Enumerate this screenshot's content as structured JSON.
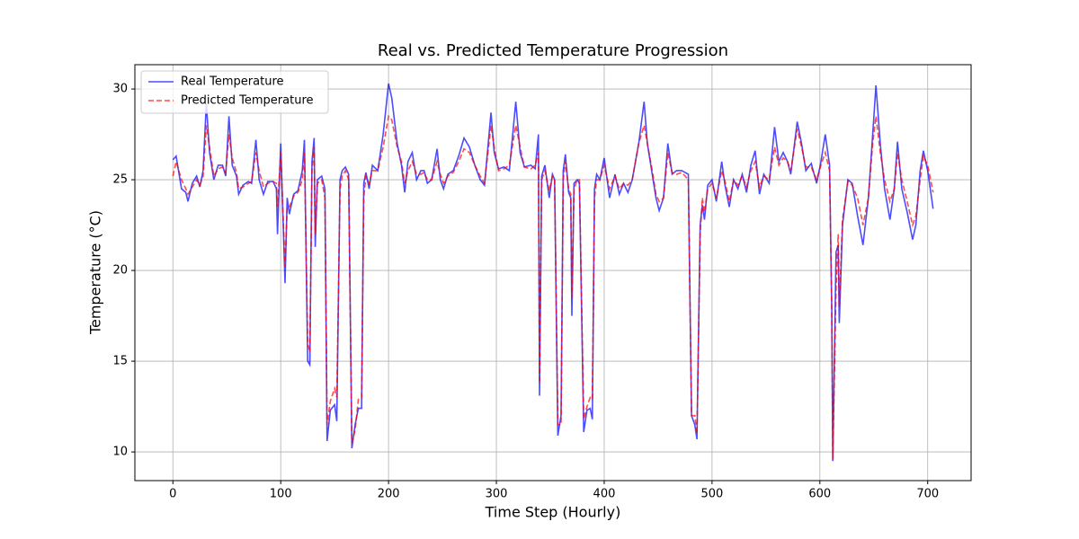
{
  "chart_data": {
    "type": "line",
    "title": "Real vs. Predicted Temperature Progression",
    "x_label": "Time Step (Hourly)",
    "y_label": "Temperature (°C)",
    "x": [
      0,
      3,
      8,
      12,
      14,
      18,
      22,
      25,
      28,
      31,
      34,
      38,
      42,
      46,
      49,
      52,
      55,
      59,
      61,
      65,
      70,
      73,
      77,
      80,
      84,
      88,
      93,
      96,
      97,
      100,
      104,
      106,
      108,
      112,
      116,
      120,
      122,
      125,
      127,
      129,
      131,
      132,
      134,
      138,
      141,
      143,
      146,
      150,
      152,
      155,
      157,
      160,
      163,
      166,
      169,
      172,
      175,
      177,
      179,
      182,
      185,
      190,
      195,
      200,
      203,
      208,
      212,
      215,
      218,
      222,
      226,
      230,
      233,
      236,
      240,
      245,
      248,
      251,
      255,
      260,
      265,
      270,
      275,
      280,
      285,
      289,
      295,
      298,
      302,
      307,
      312,
      318,
      322,
      326,
      332,
      336,
      339,
      340,
      342,
      345,
      349,
      352,
      354,
      357,
      360,
      362,
      364,
      367,
      369,
      370,
      372,
      375,
      377,
      381,
      384,
      387,
      389,
      391,
      393,
      396,
      400,
      405,
      410,
      414,
      418,
      422,
      426,
      432,
      437,
      440,
      444,
      448,
      451,
      455,
      459,
      463,
      467,
      472,
      478,
      481,
      484,
      486,
      489,
      491,
      493,
      496,
      500,
      504,
      509,
      512,
      516,
      520,
      524,
      528,
      532,
      536,
      540,
      544,
      548,
      553,
      558,
      562,
      566,
      570,
      573,
      579,
      583,
      587,
      592,
      597,
      601,
      605,
      609,
      611,
      612,
      615,
      617,
      618,
      621,
      626,
      630,
      635,
      640,
      645,
      649,
      652,
      656,
      660,
      665,
      669,
      672,
      676,
      681,
      686,
      689,
      693,
      696,
      700,
      705
    ],
    "series": [
      {
        "name": "Real Temperature",
        "color": "#0000ff",
        "linestyle": "solid",
        "values": [
          26.1,
          26.3,
          24.5,
          24.3,
          23.8,
          24.8,
          25.2,
          24.6,
          25.5,
          29.2,
          26.5,
          25.0,
          25.8,
          25.8,
          25.2,
          28.5,
          25.8,
          25.2,
          24.2,
          24.7,
          24.9,
          24.8,
          27.2,
          25.0,
          24.2,
          24.9,
          24.9,
          24.5,
          22.0,
          27.0,
          19.3,
          24.0,
          23.1,
          24.2,
          24.4,
          25.5,
          27.2,
          15.0,
          14.8,
          26.0,
          27.3,
          21.3,
          25.0,
          25.2,
          24.5,
          10.6,
          12.3,
          12.6,
          11.7,
          25.0,
          25.5,
          25.7,
          25.3,
          10.2,
          11.5,
          12.4,
          12.4,
          24.8,
          25.4,
          24.5,
          25.8,
          25.5,
          27.5,
          30.3,
          29.5,
          27.0,
          25.8,
          24.3,
          26.0,
          26.5,
          25.0,
          25.5,
          25.5,
          24.8,
          25.0,
          26.7,
          25.0,
          24.5,
          25.3,
          25.5,
          26.3,
          27.3,
          26.8,
          25.8,
          25.0,
          24.7,
          28.7,
          26.5,
          25.6,
          25.7,
          25.5,
          29.3,
          26.5,
          25.7,
          25.8,
          25.6,
          27.5,
          13.1,
          25.2,
          25.8,
          24.0,
          25.3,
          25.0,
          10.9,
          12.0,
          25.5,
          26.4,
          24.3,
          24.0,
          17.5,
          24.8,
          25.0,
          24.8,
          11.1,
          12.3,
          12.4,
          11.8,
          24.5,
          25.3,
          25.0,
          26.2,
          24.0,
          25.3,
          24.2,
          24.8,
          24.3,
          25.0,
          27.0,
          29.3,
          27.0,
          25.5,
          24.0,
          23.3,
          24.0,
          27.0,
          25.3,
          25.5,
          25.5,
          25.3,
          12.0,
          11.5,
          10.7,
          22.5,
          23.6,
          22.8,
          24.7,
          25.0,
          23.8,
          26.0,
          24.7,
          23.5,
          25.0,
          24.5,
          25.3,
          24.3,
          25.8,
          26.6,
          24.2,
          25.3,
          24.8,
          27.9,
          26.0,
          26.5,
          26.0,
          25.3,
          28.2,
          27.0,
          25.5,
          25.9,
          24.8,
          26.0,
          27.5,
          25.8,
          18.0,
          9.5,
          21.0,
          21.4,
          17.1,
          22.5,
          25.0,
          24.8,
          23.0,
          21.4,
          24.0,
          27.5,
          30.2,
          27.0,
          24.5,
          22.8,
          24.5,
          27.1,
          24.5,
          23.2,
          21.7,
          22.5,
          25.5,
          26.6,
          25.5,
          23.4
        ]
      },
      {
        "name": "Predicted Temperature",
        "color": "#ff0000",
        "linestyle": "dashed",
        "values": [
          25.2,
          26.0,
          25.0,
          24.5,
          24.2,
          24.6,
          25.0,
          24.7,
          25.2,
          28.0,
          26.8,
          25.2,
          25.6,
          25.7,
          25.4,
          27.5,
          26.2,
          25.4,
          24.5,
          24.6,
          24.8,
          24.9,
          26.5,
          25.5,
          24.6,
          24.8,
          24.9,
          24.8,
          23.5,
          26.5,
          20.2,
          23.5,
          23.5,
          24.1,
          24.3,
          25.0,
          26.5,
          16.0,
          15.5,
          25.5,
          26.8,
          22.0,
          24.8,
          25.0,
          24.0,
          11.5,
          12.8,
          13.5,
          13.0,
          24.5,
          25.2,
          25.5,
          25.0,
          10.5,
          11.2,
          12.9,
          13.0,
          24.0,
          25.2,
          24.8,
          25.5,
          25.5,
          26.8,
          28.5,
          28.3,
          26.8,
          26.0,
          24.8,
          25.5,
          26.0,
          25.3,
          25.3,
          25.4,
          25.0,
          25.0,
          26.0,
          25.3,
          24.8,
          25.2,
          25.4,
          26.0,
          26.7,
          26.5,
          25.8,
          25.2,
          24.8,
          28.0,
          26.8,
          25.5,
          25.6,
          25.8,
          28.0,
          26.8,
          25.7,
          25.6,
          25.8,
          26.5,
          13.8,
          25.0,
          25.5,
          24.4,
          25.2,
          25.0,
          11.5,
          11.5,
          25.0,
          26.0,
          24.5,
          24.2,
          18.5,
          24.5,
          25.0,
          25.0,
          11.8,
          12.5,
          13.0,
          12.9,
          24.0,
          25.0,
          25.0,
          25.8,
          24.5,
          25.2,
          24.5,
          24.8,
          24.7,
          25.0,
          27.0,
          28.0,
          27.0,
          25.7,
          24.2,
          23.8,
          24.0,
          26.5,
          25.4,
          25.3,
          25.4,
          25.0,
          12.0,
          12.0,
          11.0,
          22.0,
          24.0,
          23.2,
          24.5,
          24.8,
          24.0,
          25.5,
          24.9,
          23.8,
          25.0,
          24.7,
          25.2,
          24.6,
          25.5,
          26.0,
          24.6,
          25.2,
          25.0,
          26.8,
          25.8,
          26.2,
          26.0,
          25.5,
          27.8,
          26.8,
          25.7,
          25.7,
          25.0,
          25.8,
          26.5,
          25.5,
          18.0,
          9.6,
          19.0,
          22.0,
          18.0,
          22.8,
          24.9,
          24.7,
          24.0,
          22.5,
          24.0,
          27.0,
          28.5,
          26.5,
          25.0,
          23.8,
          24.5,
          26.5,
          25.0,
          23.8,
          22.5,
          23.0,
          25.0,
          26.3,
          25.8,
          24.3
        ]
      }
    ],
    "xlim": [
      -35.25,
      740.25
    ],
    "ylim": [
      8.42,
      31.34
    ],
    "xticks": [
      0,
      100,
      200,
      300,
      400,
      500,
      600,
      700
    ],
    "yticks": [
      10,
      15,
      20,
      25,
      30
    ],
    "grid": true,
    "legend": "upper left"
  }
}
